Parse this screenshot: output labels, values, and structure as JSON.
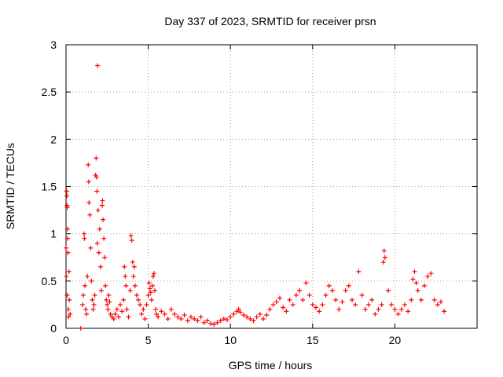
{
  "chart_data": {
    "type": "scatter",
    "title": "Day 337 of 2023, SRMTID for receiver prsn",
    "xlabel": "GPS time / hours",
    "ylabel": "SRMTID / TECUs",
    "xlim": [
      0,
      25
    ],
    "ylim": [
      0,
      3
    ],
    "xticks": [
      0,
      5,
      10,
      15,
      20
    ],
    "yticks": [
      0,
      0.5,
      1,
      1.5,
      2,
      2.5,
      3
    ],
    "ytick_labels": [
      "0",
      "0.5",
      "1",
      "1.5",
      "2",
      "2.5",
      "3"
    ],
    "grid": true,
    "marker": "plus",
    "color": "#ff0000",
    "series": [
      {
        "name": "SRMTID",
        "points": [
          [
            0.0,
            0.85
          ],
          [
            0.02,
            0.55
          ],
          [
            0.04,
            1.45
          ],
          [
            0.05,
            1.4
          ],
          [
            0.06,
            1.3
          ],
          [
            0.07,
            0.35
          ],
          [
            0.08,
            1.28
          ],
          [
            0.09,
            1.05
          ],
          [
            0.1,
            0.95
          ],
          [
            0.12,
            0.8
          ],
          [
            0.13,
            0.2
          ],
          [
            0.15,
            0.12
          ],
          [
            0.18,
            0.6
          ],
          [
            0.2,
            0.3
          ],
          [
            0.25,
            0.15
          ],
          [
            0.9,
            0.0
          ],
          [
            1.0,
            0.25
          ],
          [
            1.05,
            0.35
          ],
          [
            1.1,
            1.0
          ],
          [
            1.12,
            0.95
          ],
          [
            1.15,
            0.45
          ],
          [
            1.2,
            0.2
          ],
          [
            1.25,
            0.15
          ],
          [
            1.3,
            0.55
          ],
          [
            1.35,
            1.73
          ],
          [
            1.38,
            1.55
          ],
          [
            1.4,
            1.33
          ],
          [
            1.45,
            1.2
          ],
          [
            1.5,
            0.85
          ],
          [
            1.55,
            0.5
          ],
          [
            1.6,
            0.3
          ],
          [
            1.65,
            0.2
          ],
          [
            1.7,
            0.25
          ],
          [
            1.75,
            0.35
          ],
          [
            1.8,
            1.62
          ],
          [
            1.83,
            1.8
          ],
          [
            1.85,
            1.6
          ],
          [
            1.88,
            1.45
          ],
          [
            1.9,
            0.9
          ],
          [
            1.92,
            2.78
          ],
          [
            1.95,
            1.25
          ],
          [
            2.0,
            0.8
          ],
          [
            2.05,
            1.05
          ],
          [
            2.1,
            0.65
          ],
          [
            2.15,
            0.4
          ],
          [
            2.2,
            1.3
          ],
          [
            2.22,
            1.35
          ],
          [
            2.25,
            1.15
          ],
          [
            2.3,
            0.95
          ],
          [
            2.35,
            0.75
          ],
          [
            2.4,
            0.45
          ],
          [
            2.45,
            0.3
          ],
          [
            2.5,
            0.25
          ],
          [
            2.55,
            0.2
          ],
          [
            2.6,
            0.35
          ],
          [
            2.65,
            0.28
          ],
          [
            2.7,
            0.15
          ],
          [
            2.8,
            0.12
          ],
          [
            2.9,
            0.1
          ],
          [
            3.0,
            0.15
          ],
          [
            3.1,
            0.2
          ],
          [
            3.2,
            0.12
          ],
          [
            3.3,
            0.25
          ],
          [
            3.4,
            0.18
          ],
          [
            3.5,
            0.3
          ],
          [
            3.55,
            0.65
          ],
          [
            3.6,
            0.55
          ],
          [
            3.65,
            0.45
          ],
          [
            3.7,
            0.2
          ],
          [
            3.8,
            0.12
          ],
          [
            3.9,
            0.4
          ],
          [
            3.95,
            0.98
          ],
          [
            4.0,
            0.93
          ],
          [
            4.05,
            0.7
          ],
          [
            4.1,
            0.55
          ],
          [
            4.15,
            0.65
          ],
          [
            4.2,
            0.45
          ],
          [
            4.3,
            0.35
          ],
          [
            4.4,
            0.3
          ],
          [
            4.5,
            0.25
          ],
          [
            4.6,
            0.15
          ],
          [
            4.7,
            0.2
          ],
          [
            4.8,
            0.1
          ],
          [
            4.9,
            0.25
          ],
          [
            5.0,
            0.35
          ],
          [
            5.05,
            0.48
          ],
          [
            5.1,
            0.42
          ],
          [
            5.15,
            0.38
          ],
          [
            5.2,
            0.3
          ],
          [
            5.25,
            0.45
          ],
          [
            5.3,
            0.55
          ],
          [
            5.35,
            0.58
          ],
          [
            5.4,
            0.4
          ],
          [
            5.45,
            0.2
          ],
          [
            5.5,
            0.15
          ],
          [
            5.6,
            0.12
          ],
          [
            5.8,
            0.18
          ],
          [
            6.0,
            0.15
          ],
          [
            6.2,
            0.1
          ],
          [
            6.4,
            0.2
          ],
          [
            6.6,
            0.15
          ],
          [
            6.8,
            0.12
          ],
          [
            7.0,
            0.1
          ],
          [
            7.2,
            0.14
          ],
          [
            7.4,
            0.08
          ],
          [
            7.6,
            0.12
          ],
          [
            7.8,
            0.1
          ],
          [
            8.0,
            0.08
          ],
          [
            8.2,
            0.12
          ],
          [
            8.4,
            0.06
          ],
          [
            8.6,
            0.08
          ],
          [
            8.8,
            0.05
          ],
          [
            9.0,
            0.04
          ],
          [
            9.2,
            0.06
          ],
          [
            9.4,
            0.08
          ],
          [
            9.6,
            0.1
          ],
          [
            9.8,
            0.09
          ],
          [
            10.0,
            0.12
          ],
          [
            10.2,
            0.15
          ],
          [
            10.4,
            0.18
          ],
          [
            10.5,
            0.2
          ],
          [
            10.6,
            0.17
          ],
          [
            10.8,
            0.14
          ],
          [
            11.0,
            0.12
          ],
          [
            11.2,
            0.1
          ],
          [
            11.4,
            0.08
          ],
          [
            11.6,
            0.12
          ],
          [
            11.8,
            0.15
          ],
          [
            12.0,
            0.1
          ],
          [
            12.2,
            0.14
          ],
          [
            12.4,
            0.2
          ],
          [
            12.6,
            0.25
          ],
          [
            12.8,
            0.28
          ],
          [
            13.0,
            0.32
          ],
          [
            13.2,
            0.22
          ],
          [
            13.4,
            0.18
          ],
          [
            13.6,
            0.3
          ],
          [
            13.8,
            0.25
          ],
          [
            14.0,
            0.35
          ],
          [
            14.2,
            0.4
          ],
          [
            14.4,
            0.3
          ],
          [
            14.6,
            0.48
          ],
          [
            14.8,
            0.35
          ],
          [
            15.0,
            0.25
          ],
          [
            15.2,
            0.22
          ],
          [
            15.4,
            0.18
          ],
          [
            15.6,
            0.25
          ],
          [
            15.8,
            0.35
          ],
          [
            16.0,
            0.45
          ],
          [
            16.2,
            0.4
          ],
          [
            16.4,
            0.3
          ],
          [
            16.6,
            0.2
          ],
          [
            16.8,
            0.28
          ],
          [
            17.0,
            0.4
          ],
          [
            17.2,
            0.45
          ],
          [
            17.4,
            0.3
          ],
          [
            17.6,
            0.25
          ],
          [
            17.8,
            0.6
          ],
          [
            18.0,
            0.35
          ],
          [
            18.2,
            0.2
          ],
          [
            18.4,
            0.25
          ],
          [
            18.6,
            0.3
          ],
          [
            18.8,
            0.15
          ],
          [
            19.0,
            0.2
          ],
          [
            19.2,
            0.25
          ],
          [
            19.3,
            0.7
          ],
          [
            19.35,
            0.82
          ],
          [
            19.4,
            0.75
          ],
          [
            19.6,
            0.4
          ],
          [
            19.8,
            0.25
          ],
          [
            20.0,
            0.2
          ],
          [
            20.2,
            0.15
          ],
          [
            20.4,
            0.2
          ],
          [
            20.6,
            0.25
          ],
          [
            20.8,
            0.18
          ],
          [
            21.0,
            0.3
          ],
          [
            21.1,
            0.52
          ],
          [
            21.2,
            0.6
          ],
          [
            21.3,
            0.48
          ],
          [
            21.4,
            0.4
          ],
          [
            21.6,
            0.3
          ],
          [
            21.8,
            0.45
          ],
          [
            22.0,
            0.55
          ],
          [
            22.2,
            0.58
          ],
          [
            22.4,
            0.3
          ],
          [
            22.6,
            0.25
          ],
          [
            22.8,
            0.28
          ],
          [
            23.0,
            0.18
          ]
        ]
      }
    ]
  }
}
